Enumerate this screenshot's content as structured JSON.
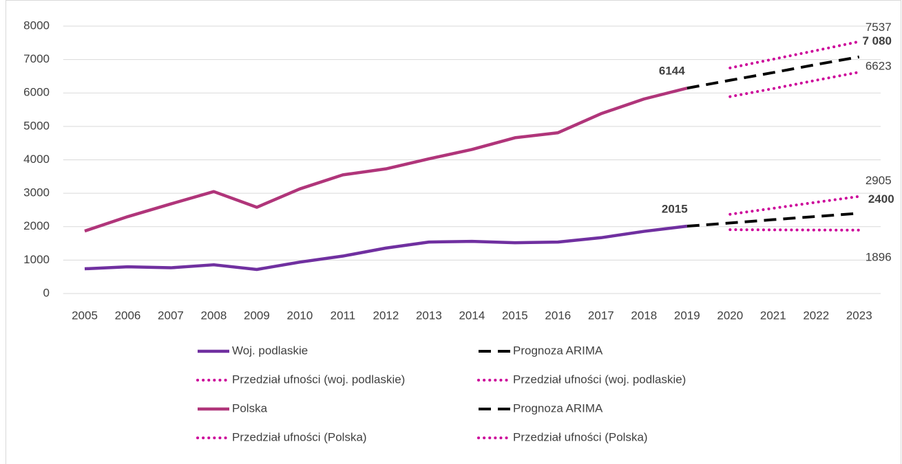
{
  "chart_data": {
    "type": "line",
    "categories": [
      "2005",
      "2006",
      "2007",
      "2008",
      "2009",
      "2010",
      "2011",
      "2012",
      "2013",
      "2014",
      "2015",
      "2016",
      "2017",
      "2018",
      "2019",
      "2020",
      "2021",
      "2022",
      "2023"
    ],
    "ylim": [
      0,
      8000
    ],
    "yticks": [
      0,
      1000,
      2000,
      3000,
      4000,
      5000,
      6000,
      7000,
      8000
    ],
    "grid": true,
    "series": [
      {
        "name": "Woj. podlaskie",
        "color": "#7030a0",
        "style": "solid",
        "values": [
          740,
          800,
          770,
          860,
          720,
          940,
          1120,
          1360,
          1540,
          1560,
          1520,
          1540,
          1670,
          1860,
          2015,
          null,
          null,
          null,
          null
        ],
        "value_labels": [
          null,
          null,
          null,
          null,
          null,
          null,
          null,
          null,
          null,
          null,
          null,
          null,
          null,
          null,
          "2015",
          null,
          null,
          null,
          null
        ],
        "label_bold": true
      },
      {
        "name": "Prognoza ARIMA",
        "color": "#000000",
        "style": "dashed",
        "values": [
          null,
          null,
          null,
          null,
          null,
          null,
          null,
          null,
          null,
          null,
          null,
          null,
          null,
          null,
          2015,
          2110,
          2210,
          2305,
          2400
        ],
        "value_labels": [
          null,
          null,
          null,
          null,
          null,
          null,
          null,
          null,
          null,
          null,
          null,
          null,
          null,
          null,
          null,
          null,
          null,
          null,
          "2400"
        ],
        "label_bold": true
      },
      {
        "name": "Przedział ufności (woj. podlaskie)",
        "color": "#cc0099",
        "style": "dotted",
        "values": [
          null,
          null,
          null,
          null,
          null,
          null,
          null,
          null,
          null,
          null,
          null,
          null,
          null,
          null,
          null,
          2370,
          2550,
          2730,
          2905
        ],
        "value_labels": [
          null,
          null,
          null,
          null,
          null,
          null,
          null,
          null,
          null,
          null,
          null,
          null,
          null,
          null,
          null,
          null,
          null,
          null,
          "2905"
        ]
      },
      {
        "name": "Przedział ufności (woj. podlaskie)",
        "color": "#cc0099",
        "style": "dotted",
        "values": [
          null,
          null,
          null,
          null,
          null,
          null,
          null,
          null,
          null,
          null,
          null,
          null,
          null,
          null,
          null,
          1910,
          1905,
          1900,
          1896
        ],
        "value_labels": [
          null,
          null,
          null,
          null,
          null,
          null,
          null,
          null,
          null,
          null,
          null,
          null,
          null,
          null,
          null,
          null,
          null,
          null,
          "1896"
        ]
      },
      {
        "name": "Polska",
        "color": "#b0357a",
        "style": "solid",
        "values": [
          1870,
          2300,
          2680,
          3050,
          2580,
          3130,
          3550,
          3730,
          4030,
          4310,
          4660,
          4810,
          5380,
          5820,
          6144,
          null,
          null,
          null,
          null
        ],
        "value_labels": [
          null,
          null,
          null,
          null,
          null,
          null,
          null,
          null,
          null,
          null,
          null,
          null,
          null,
          null,
          "6144",
          null,
          null,
          null,
          null
        ],
        "label_bold": true
      },
      {
        "name": "Prognoza ARIMA",
        "color": "#000000",
        "style": "dashed",
        "values": [
          null,
          null,
          null,
          null,
          null,
          null,
          null,
          null,
          null,
          null,
          null,
          null,
          null,
          null,
          6144,
          6380,
          6610,
          6850,
          7080
        ],
        "value_labels": [
          null,
          null,
          null,
          null,
          null,
          null,
          null,
          null,
          null,
          null,
          null,
          null,
          null,
          null,
          null,
          null,
          null,
          null,
          "7 080"
        ],
        "label_bold": true
      },
      {
        "name": "Przedział ufności (Polska)",
        "color": "#cc0099",
        "style": "dotted",
        "values": [
          null,
          null,
          null,
          null,
          null,
          null,
          null,
          null,
          null,
          null,
          null,
          null,
          null,
          null,
          null,
          6750,
          7010,
          7270,
          7537
        ],
        "value_labels": [
          null,
          null,
          null,
          null,
          null,
          null,
          null,
          null,
          null,
          null,
          null,
          null,
          null,
          null,
          null,
          null,
          null,
          null,
          "7537"
        ]
      },
      {
        "name": "Przedział ufności (Polska)",
        "color": "#cc0099",
        "style": "dotted",
        "values": [
          null,
          null,
          null,
          null,
          null,
          null,
          null,
          null,
          null,
          null,
          null,
          null,
          null,
          null,
          null,
          5890,
          6130,
          6380,
          6623
        ],
        "value_labels": [
          null,
          null,
          null,
          null,
          null,
          null,
          null,
          null,
          null,
          null,
          null,
          null,
          null,
          null,
          null,
          null,
          null,
          null,
          "6623"
        ]
      }
    ]
  }
}
